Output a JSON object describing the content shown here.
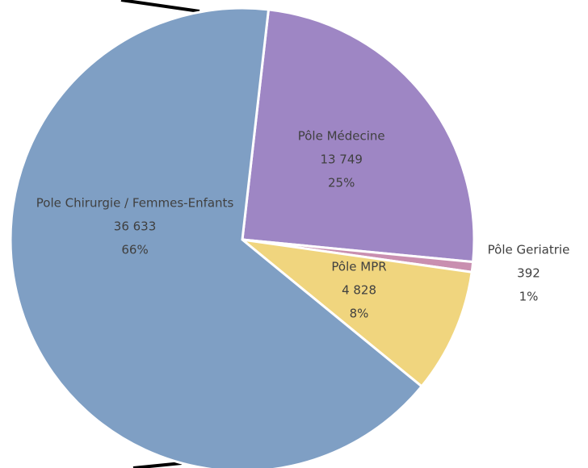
{
  "chart_data": {
    "type": "pie",
    "categories": [
      "Pôle Médecine",
      "Pôle Geriatrie",
      "Pôle MPR",
      "Pole Chirurgie / Femmes-Enfants"
    ],
    "values": [
      13749,
      392,
      4828,
      36633
    ],
    "value_labels": [
      "13 749",
      "392",
      "4 828",
      "36 633"
    ],
    "percent_labels": [
      "25%",
      "1%",
      "8%",
      "66%"
    ],
    "colors": [
      "#9e86c4",
      "#c98fb0",
      "#f0d57e",
      "#7f9fc4"
    ]
  }
}
